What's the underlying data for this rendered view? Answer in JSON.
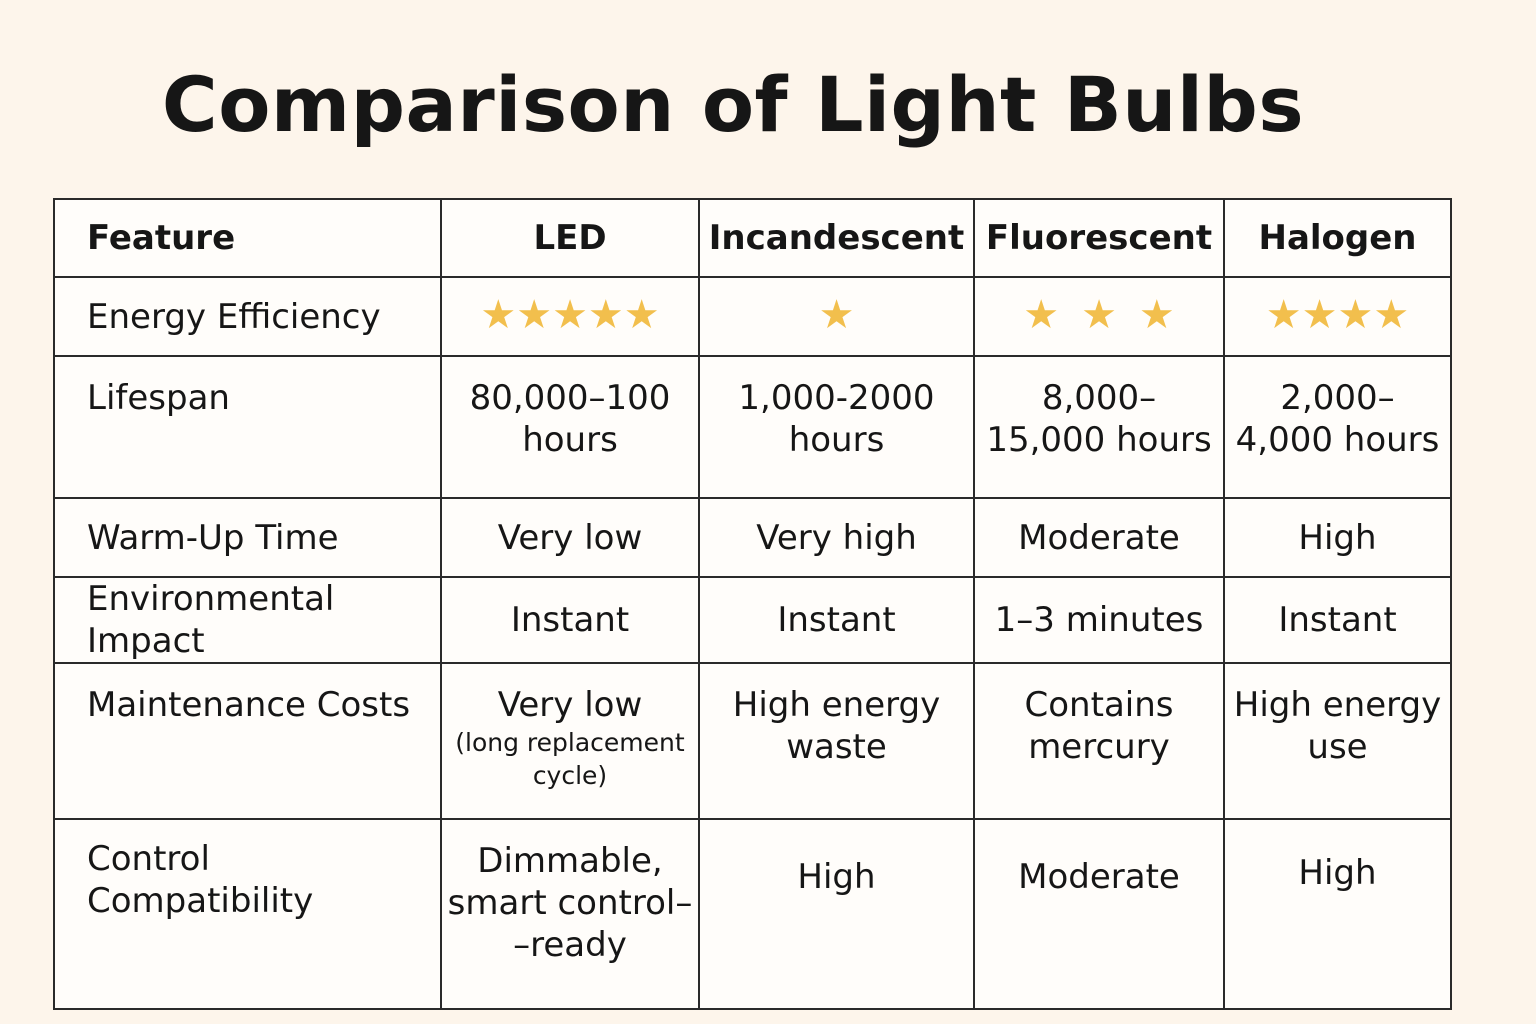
{
  "title": "Comparison of Light Bulbs",
  "headers": [
    "Feature",
    "LED",
    "Incandescent",
    "Fluorescent",
    "Halogen"
  ],
  "rows": {
    "energy_efficiency": {
      "label": "Energy Efficiency",
      "ratings": [
        5,
        1,
        3,
        4
      ],
      "stars": [
        "★★★★★",
        "★",
        "★★★",
        "★★★★"
      ]
    },
    "lifespan": {
      "label": "Lifespan",
      "values": [
        [
          "80,000–100",
          "hours"
        ],
        [
          "1,000-2000",
          "hours"
        ],
        [
          "8,000–",
          "15,000 hours"
        ],
        [
          "2,000–",
          "4,000 hours"
        ]
      ]
    },
    "warm_up_time": {
      "label": "Warm-Up Time",
      "values": [
        "Very low",
        "Very high",
        "Moderate",
        "High"
      ]
    },
    "environmental_impact": {
      "label": "Environmental Impact",
      "values": [
        "Instant",
        "Instant",
        "1–3 minutes",
        "Instant"
      ]
    },
    "maintenance_costs": {
      "label": "Maintenance Costs",
      "led_main": "Very low",
      "led_note": [
        "(long replacement",
        "cycle)"
      ],
      "values": [
        [
          "High energy",
          "waste"
        ],
        [
          "Contains",
          "mercury"
        ],
        [
          "High energy",
          "use"
        ]
      ]
    },
    "control_compatibility": {
      "label": [
        "Control",
        "Compatibility"
      ],
      "led": [
        "Dimmable,",
        "smart control–",
        "–ready"
      ],
      "values": [
        "High",
        "Moderate",
        "High"
      ]
    }
  },
  "colors": {
    "background": "#fdf5eb",
    "star": "#f2bf4d",
    "border": "#2a2a2a"
  }
}
